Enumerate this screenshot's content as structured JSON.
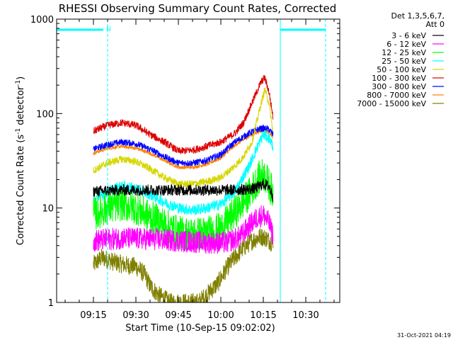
{
  "chart_data": {
    "type": "line",
    "title": "RHESSI Observing Summary Count Rates, Corrected",
    "xlabel": "Start Time (10-Sep-15 09:02:02)",
    "ylabel": "Corrected Count Rate (s⁻¹ detector⁻¹)",
    "ylabel_parts": [
      "Corrected Count Rate (s",
      "-1",
      " detector",
      "-1",
      ")"
    ],
    "x_ticks": [
      "09:15",
      "09:30",
      "09:45",
      "10:00",
      "10:15",
      "10:30"
    ],
    "x_tick_minutes": [
      15,
      30,
      45,
      60,
      75,
      90
    ],
    "x_range_minutes": [
      2,
      102
    ],
    "y_scale": "log",
    "y_ticks": [
      "1",
      "10",
      "100",
      "1000"
    ],
    "y_tick_values": [
      1,
      10,
      100,
      1000
    ],
    "ylim": [
      1,
      1000
    ],
    "legend_header": [
      "Det 1,3,5,6,7,",
      "Att 0"
    ],
    "legend_placement": "right",
    "footer_date": "31-Oct-2021 04:19",
    "flags": {
      "night_label": "N",
      "night_bars": [
        {
          "start": 2,
          "end": 18.5
        },
        {
          "start": 81,
          "end": 97
        }
      ],
      "solid_markers": [
        2,
        81
      ],
      "dashed_markers": [
        20,
        97
      ],
      "color": "#00ffff"
    },
    "series": [
      {
        "name": "3 - 6 keV",
        "color": "#000000",
        "x": [
          15,
          25,
          35,
          45,
          55,
          65,
          72,
          75,
          77,
          78.5
        ],
        "y": [
          15,
          15.5,
          15.5,
          15.5,
          15.5,
          15.5,
          16,
          18,
          17,
          13
        ],
        "noise": 0.06
      },
      {
        "name": "6 - 12 keV",
        "color": "#ff00ff",
        "x": [
          15,
          25,
          35,
          45,
          55,
          62,
          67,
          70,
          73,
          75,
          77,
          78.5
        ],
        "y": [
          4.5,
          4.8,
          4.7,
          4.5,
          4.3,
          4.3,
          5,
          6.5,
          8,
          8.5,
          7,
          5
        ],
        "noise": 0.12
      },
      {
        "name": "12 - 25 keV",
        "color": "#00ff00",
        "x": [
          15,
          20,
          25,
          30,
          35,
          40,
          45,
          50,
          55,
          60,
          65,
          70,
          73,
          75,
          77,
          78.5
        ],
        "y": [
          8.5,
          10,
          11,
          10,
          8,
          6.8,
          5.5,
          5.3,
          5.5,
          6,
          9,
          14,
          20,
          23,
          18,
          14
        ],
        "noise": 0.18
      },
      {
        "name": "25 - 50 keV",
        "color": "#00ffff",
        "x": [
          15,
          20,
          25,
          30,
          35,
          40,
          45,
          50,
          55,
          60,
          65,
          70,
          73,
          75,
          77,
          78.5
        ],
        "y": [
          12,
          15,
          17,
          16,
          14,
          11.5,
          10,
          9.5,
          10,
          11,
          15,
          28,
          45,
          60,
          55,
          45
        ],
        "noise": 0.06
      },
      {
        "name": "50 - 100 keV",
        "color": "#d6d600",
        "x": [
          15,
          20,
          25,
          30,
          35,
          40,
          45,
          50,
          55,
          60,
          65,
          68,
          71,
          74,
          75.5,
          77,
          78.5
        ],
        "y": [
          25,
          30,
          33,
          31,
          26,
          21,
          18,
          18,
          19,
          21,
          28,
          35,
          50,
          120,
          180,
          130,
          60
        ],
        "noise": 0.04
      },
      {
        "name": "100 - 300 keV",
        "color": "#dd0000",
        "x": [
          15,
          20,
          25,
          30,
          35,
          40,
          45,
          50,
          55,
          60,
          65,
          68,
          71,
          74,
          75.5,
          77,
          78.5
        ],
        "y": [
          65,
          75,
          80,
          75,
          60,
          50,
          40,
          41,
          45,
          50,
          62,
          80,
          130,
          210,
          240,
          170,
          90
        ],
        "noise": 0.04
      },
      {
        "name": "300 - 800 keV",
        "color": "#0000ff",
        "x": [
          15,
          20,
          25,
          30,
          35,
          40,
          45,
          50,
          55,
          60,
          65,
          70,
          73,
          75,
          77,
          78.5
        ],
        "y": [
          42,
          47,
          50,
          48,
          42,
          35,
          30,
          30,
          32,
          37,
          50,
          62,
          68,
          70,
          68,
          60
        ],
        "noise": 0.035
      },
      {
        "name": "800 - 7000 keV",
        "color": "#ff7f00",
        "x": [
          15,
          20,
          25,
          30,
          35,
          40,
          45,
          50,
          55,
          60,
          65,
          70,
          73,
          75,
          77,
          78.5
        ],
        "y": [
          38,
          43,
          45,
          43,
          38,
          32,
          27,
          27,
          29,
          34,
          46,
          58,
          64,
          66,
          64,
          56
        ],
        "noise": 0.02
      },
      {
        "name": "7000 - 15000 keV",
        "color": "#7f7f00",
        "x": [
          15,
          18,
          22,
          26,
          30,
          33,
          35,
          38,
          42,
          48,
          52,
          55,
          59,
          62,
          65,
          68,
          71,
          74,
          76,
          78.5
        ],
        "y": [
          2.5,
          3,
          2.7,
          2.5,
          2.4,
          2,
          1.5,
          1.2,
          1,
          1,
          1,
          1.2,
          1.6,
          2.3,
          3,
          3.8,
          4.5,
          5,
          4.8,
          4.2
        ],
        "noise": 0.1
      }
    ]
  }
}
